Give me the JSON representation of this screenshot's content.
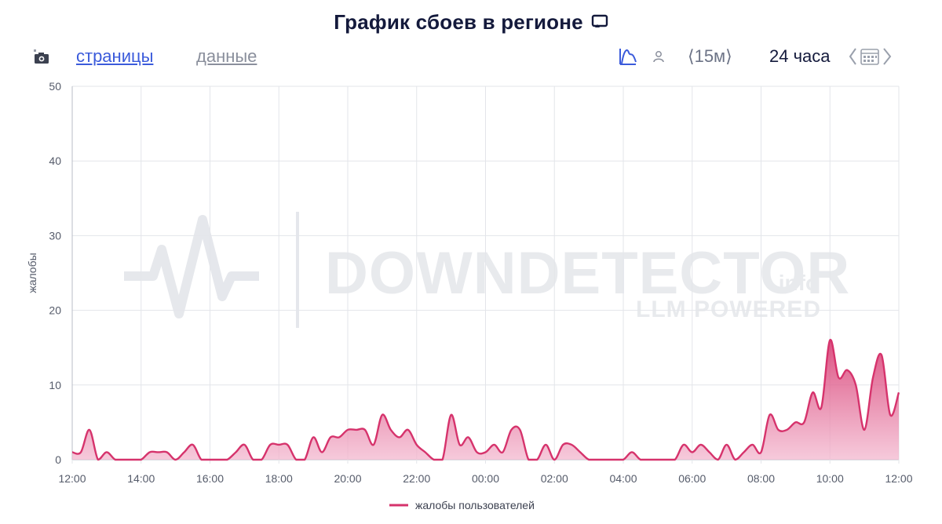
{
  "header": {
    "title": "График сбоев в регионе",
    "title_icon": "monitor-icon"
  },
  "toolbar": {
    "screenshot_icon": "camera-icon",
    "tab_pages": "страницы",
    "tab_data": "данные",
    "chart_mode_icon": "area-chart-icon",
    "user_icon": "user-icon",
    "interval_label": "⟨15м⟩",
    "range_label": "24 часа",
    "calendar_icon": "calendar-icon"
  },
  "watermark": {
    "brand": "DOWNDETECTOR",
    "suffix": ".info",
    "tagline": "LLM POWERED"
  },
  "colors": {
    "series": "#d6336c",
    "fill_top": "#d6336c",
    "fill_bottom": "#f3b8cf",
    "grid": "#e3e5ea",
    "accent": "#3b5bdb"
  },
  "chart_data": {
    "type": "area",
    "title": "График сбоев в регионе",
    "xlabel": "",
    "ylabel": "жалобы",
    "ylim": [
      0,
      50
    ],
    "yticks": [
      0,
      10,
      20,
      30,
      40,
      50
    ],
    "xlim_hours": [
      12,
      36
    ],
    "xticks": [
      "12:00",
      "14:00",
      "16:00",
      "18:00",
      "20:00",
      "22:00",
      "00:00",
      "02:00",
      "04:00",
      "06:00",
      "08:00",
      "10:00",
      "12:00"
    ],
    "grid": true,
    "legend_position": "bottom-center",
    "series": [
      {
        "name": "жалобы пользователей",
        "interval": "15m",
        "values": [
          1,
          1,
          4,
          0,
          1,
          0,
          0,
          0,
          0,
          1,
          1,
          1,
          0,
          1,
          2,
          0,
          0,
          0,
          0,
          1,
          2,
          0,
          0,
          2,
          2,
          2,
          0,
          0,
          3,
          1,
          3,
          3,
          4,
          4,
          4,
          2,
          6,
          4,
          3,
          4,
          2,
          1,
          0,
          0,
          6,
          2,
          3,
          1,
          1,
          2,
          1,
          4,
          4,
          0,
          0,
          2,
          0,
          2,
          2,
          1,
          0,
          0,
          0,
          0,
          0,
          1,
          0,
          0,
          0,
          0,
          0,
          2,
          1,
          2,
          1,
          0,
          2,
          0,
          1,
          2,
          1,
          6,
          4,
          4,
          5,
          5,
          9,
          7,
          16,
          11,
          12,
          10,
          4,
          11,
          14,
          6,
          9
        ]
      }
    ]
  },
  "legend": {
    "series_label": "жалобы пользователей"
  }
}
